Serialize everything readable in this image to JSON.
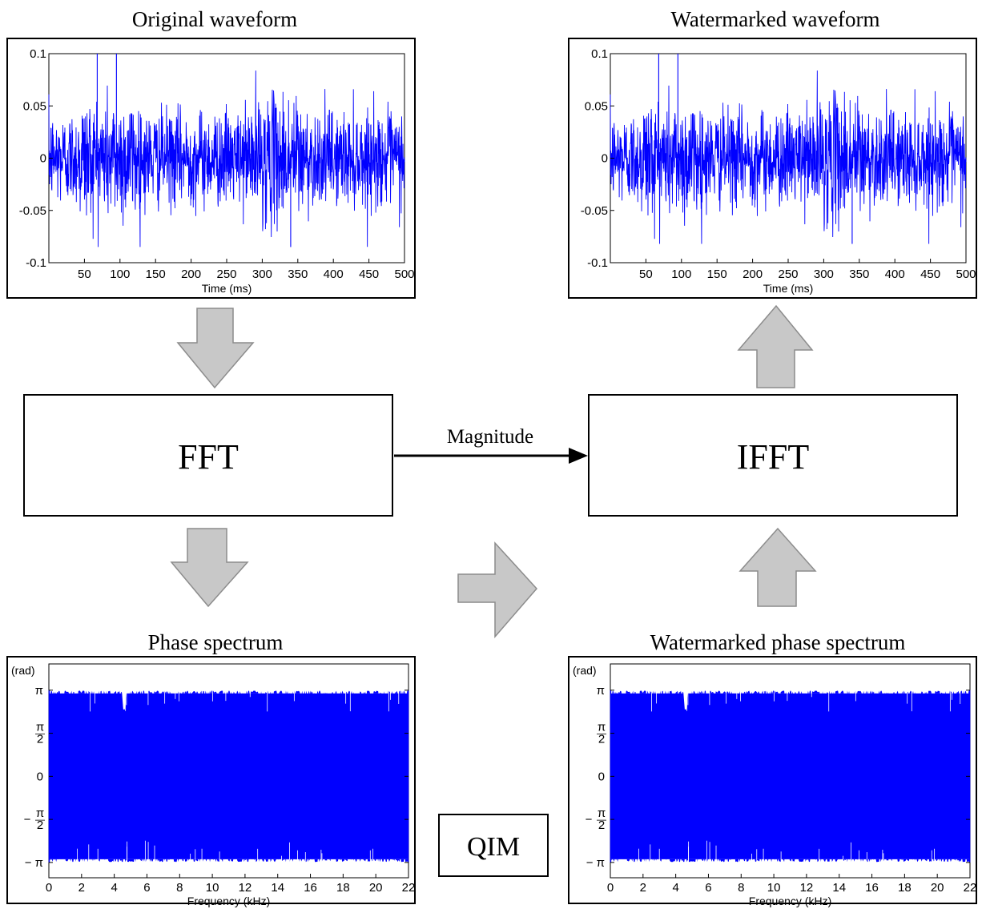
{
  "diagram": {
    "original_waveform_title": "Original waveform",
    "watermarked_waveform_title": "Watermarked waveform",
    "phase_spectrum_title": "Phase spectrum",
    "watermarked_phase_title": "Watermarked phase spectrum",
    "fft_label": "FFT",
    "ifft_label": "IFFT",
    "qim_label": "QIM",
    "magnitude_label": "Magnitude",
    "colors": {
      "signal": "#0000ff",
      "arrow_fill": "#c8c8c8",
      "arrow_stroke": "#8c8c8c"
    }
  },
  "chart_data": [
    {
      "type": "line",
      "id": "original_waveform",
      "title": "Original waveform",
      "xlabel": "Time (ms)",
      "ylabel": "",
      "xlim": [
        0,
        500
      ],
      "ylim": [
        -0.1,
        0.1
      ],
      "xticks": [
        "50",
        "100",
        "150",
        "200",
        "250",
        "300",
        "350",
        "400",
        "450",
        "500"
      ],
      "yticks": [
        "0.1",
        "0.05",
        "0",
        "-0.05",
        "-0.1"
      ],
      "series": [
        {
          "color": "#0000ff",
          "envelope_max": 0.1,
          "envelope_min": -0.085
        }
      ]
    },
    {
      "type": "line",
      "id": "watermarked_waveform",
      "title": "Watermarked waveform",
      "xlabel": "Time (ms)",
      "ylabel": "",
      "xlim": [
        0,
        500
      ],
      "ylim": [
        -0.1,
        0.1
      ],
      "xticks": [
        "50",
        "100",
        "150",
        "200",
        "250",
        "300",
        "350",
        "400",
        "450",
        "500"
      ],
      "yticks": [
        "0.1",
        "0.05",
        "0",
        "-0.05",
        "-0.1"
      ],
      "series": [
        {
          "color": "#0000ff",
          "envelope_max": 0.1,
          "envelope_min": -0.082
        }
      ]
    },
    {
      "type": "line",
      "id": "phase_spectrum",
      "title": "Phase spectrum",
      "xlabel": "Frequency (kHz)",
      "ylabel": "(rad)",
      "xlim": [
        0,
        22
      ],
      "ylim": [
        -3.7,
        4.1
      ],
      "xticks": [
        "0",
        "2",
        "4",
        "6",
        "8",
        "10",
        "12",
        "14",
        "16",
        "18",
        "20",
        "22"
      ],
      "yticks": [
        "π",
        "π/2",
        "0",
        "− π/2",
        "− π"
      ],
      "series": [
        {
          "color": "#0000ff",
          "envelope_max": 3.1416,
          "envelope_min": -3.1416
        }
      ]
    },
    {
      "type": "line",
      "id": "watermarked_phase_spectrum",
      "title": "Watermarked phase spectrum",
      "xlabel": "Frequency (kHz)",
      "ylabel": "(rad)",
      "xlim": [
        0,
        22
      ],
      "ylim": [
        -3.7,
        4.1
      ],
      "xticks": [
        "0",
        "2",
        "4",
        "6",
        "8",
        "10",
        "12",
        "14",
        "16",
        "18",
        "20",
        "22"
      ],
      "yticks": [
        "π",
        "π/2",
        "0",
        "− π/2",
        "− π"
      ],
      "series": [
        {
          "color": "#0000ff",
          "envelope_max": 3.1416,
          "envelope_min": -3.1416
        }
      ]
    }
  ]
}
